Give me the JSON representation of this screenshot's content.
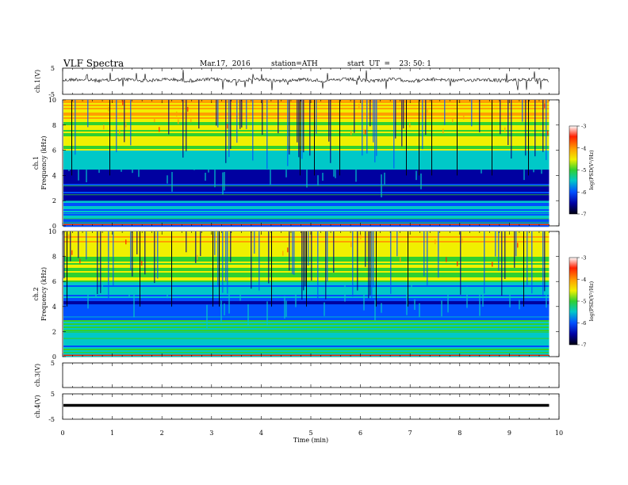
{
  "header": {
    "title": "VLF  Spectra",
    "date": "Mar.17,  2016",
    "station": "station=ATH",
    "start": "start  UT  =    23: 50: 1"
  },
  "chart_data": [
    {
      "type": "line",
      "ylabel": "ch.1(V)",
      "ylim": [
        -5,
        5
      ],
      "yticks": [
        "5",
        "-5"
      ],
      "description_values": {
        "baseline_v": 0
      }
    },
    {
      "type": "heatmap",
      "ylabel_top": "ch.1",
      "ylabel": "Frequency  (kHz)",
      "ylim": [
        0,
        10
      ],
      "yticks": [
        "0",
        "2",
        "4",
        "6",
        "8",
        "10"
      ],
      "colorbar": {
        "label": "log(PSD(V²/Hz)",
        "range": [
          -7,
          -3
        ],
        "ticks": [
          "-3",
          "-4",
          "-5",
          "-6",
          "-7"
        ]
      }
    },
    {
      "type": "heatmap",
      "ylabel_top": "ch.2",
      "ylabel": "Frequency  (kHz)",
      "ylim": [
        0,
        10
      ],
      "yticks": [
        "0",
        "2",
        "4",
        "6",
        "8",
        "10"
      ],
      "colorbar": {
        "label": "log(PSD(V²/Hz)",
        "range": [
          -7,
          -3
        ],
        "ticks": [
          "-3",
          "-4",
          "-5",
          "-6",
          "-7"
        ]
      }
    },
    {
      "type": "line",
      "ylabel": "ch.3(V)",
      "ylim": [
        -5,
        5
      ],
      "yticks": [
        "5"
      ]
    },
    {
      "type": "line",
      "ylabel": "ch.4(V)",
      "ylim": [
        -5,
        5
      ],
      "yticks": [
        "5",
        "-5"
      ]
    }
  ],
  "xaxis": {
    "label": "Time  (min)",
    "xlim": [
      0,
      10
    ],
    "ticks": [
      "0",
      "1",
      "2",
      "3",
      "4",
      "5",
      "6",
      "7",
      "8",
      "9",
      "10"
    ],
    "data_end_min": 9.8
  },
  "colors": {
    "cb": [
      "#ffffff",
      "#ff2000",
      "#ffa000",
      "#f0f000",
      "#30d030",
      "#00c8c8",
      "#0050ff",
      "#0000a0",
      "#000010"
    ]
  }
}
